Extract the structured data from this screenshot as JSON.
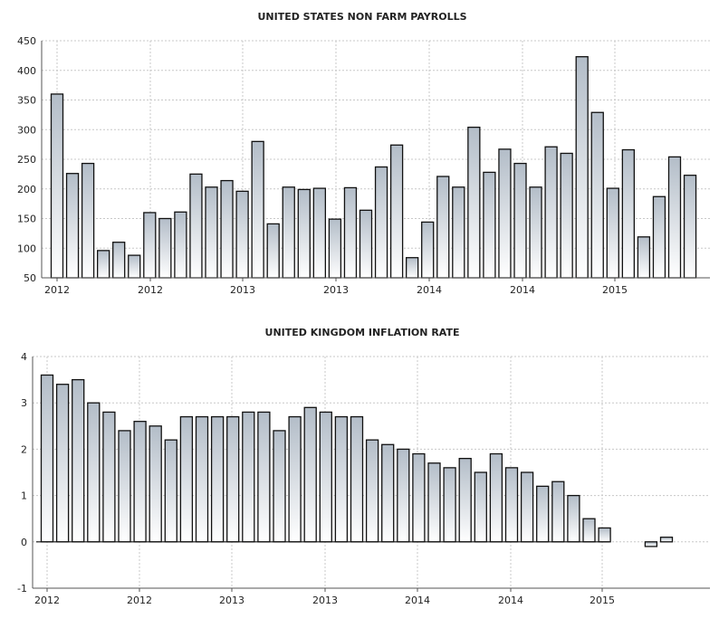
{
  "chart_data": [
    {
      "type": "bar",
      "title": "UNITED STATES NON FARM PAYROLLS",
      "ylim": [
        50,
        450
      ],
      "yticks": [
        50,
        100,
        150,
        200,
        250,
        300,
        350,
        400,
        450
      ],
      "xticks": [
        "2012",
        "2012",
        "2013",
        "2013",
        "2014",
        "2014",
        "2015"
      ],
      "values": [
        360,
        226,
        243,
        96,
        110,
        88,
        160,
        150,
        161,
        225,
        203,
        214,
        196,
        280,
        141,
        203,
        199,
        201,
        149,
        202,
        164,
        237,
        274,
        84,
        144,
        221,
        203,
        304,
        228,
        267,
        243,
        203,
        271,
        260,
        423,
        329,
        201,
        266,
        119,
        187,
        254,
        223
      ],
      "grid": true
    },
    {
      "type": "bar",
      "title": "UNITED KINGDOM INFLATION RATE",
      "ylim": [
        -1,
        4
      ],
      "yticks": [
        -1,
        0,
        1,
        2,
        3,
        4
      ],
      "xticks": [
        "2012",
        "2012",
        "2013",
        "2013",
        "2014",
        "2014",
        "2015"
      ],
      "values": [
        3.6,
        3.4,
        3.5,
        3.0,
        2.8,
        2.4,
        2.6,
        2.5,
        2.2,
        2.7,
        2.7,
        2.7,
        2.7,
        2.8,
        2.8,
        2.4,
        2.7,
        2.9,
        2.8,
        2.7,
        2.7,
        2.2,
        2.1,
        2.0,
        1.9,
        1.7,
        1.6,
        1.8,
        1.5,
        1.9,
        1.6,
        1.5,
        1.2,
        1.3,
        1.0,
        0.5,
        0.3,
        0.0,
        0.0,
        -0.1,
        0.1
      ],
      "grid": true
    }
  ]
}
